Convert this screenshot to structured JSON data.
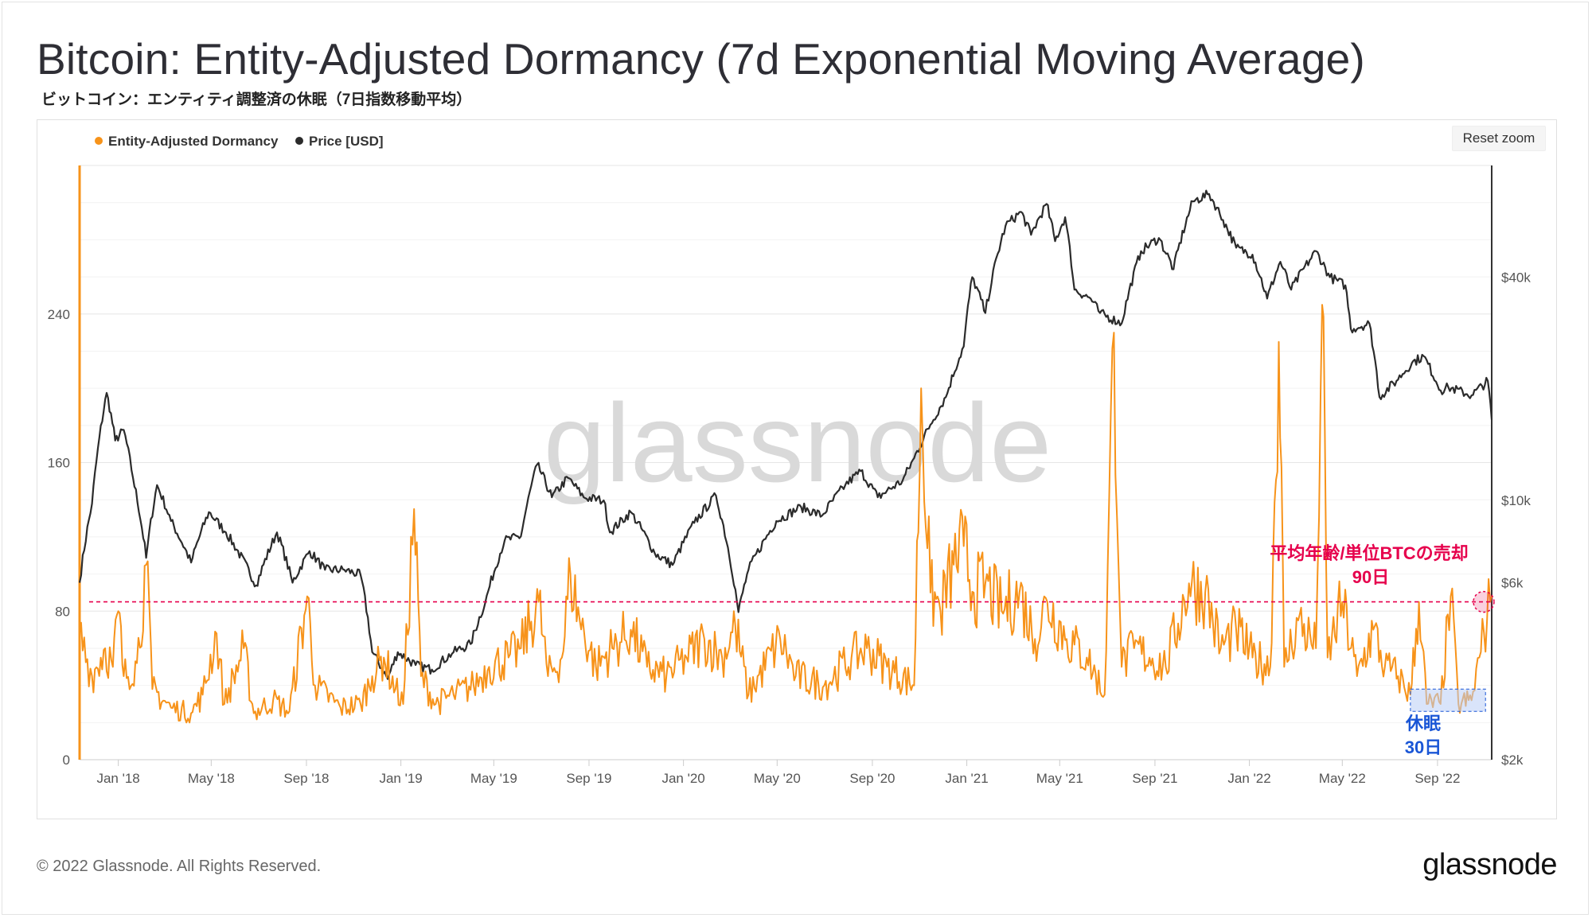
{
  "title": "Bitcoin: Entity-Adjusted Dormancy (7d Exponential Moving Average)",
  "subtitle": "ビットコイン：エンティティ調整済の休眠（7日指数移動平均）",
  "reset_zoom_label": "Reset zoom",
  "watermark": "glassnode",
  "footer": {
    "copyright": "© 2022 Glassnode. All Rights Reserved.",
    "logo": "glassnode"
  },
  "colors": {
    "dormancy": "#f7931a",
    "price": "#2b2b2b",
    "threshold": "#e6004c",
    "dormant_label": "#1a56d6",
    "dormant_box": "#b9cdf5"
  },
  "annotations": {
    "sell_label_line1": "平均年齢/単位BTCの売却",
    "sell_label_line2": "90日",
    "dormant_label_line1": "休眠",
    "dormant_label_line2": "30日"
  },
  "chart_data": {
    "type": "line",
    "title": "Bitcoin: Entity-Adjusted Dormancy (7d Exponential Moving Average)",
    "x_ticks": [
      "Jan '18",
      "May '18",
      "Sep '18",
      "Jan '19",
      "May '19",
      "Sep '19",
      "Jan '20",
      "May '20",
      "Sep '20",
      "Jan '21",
      "May '21",
      "Sep '21",
      "Jan '22",
      "May '22",
      "Sep '22"
    ],
    "x_range": [
      "2017-11-12",
      "2022-11-10"
    ],
    "y_left": {
      "ticks": [
        0,
        80,
        160,
        240
      ],
      "range": [
        0,
        320
      ]
    },
    "y_right": {
      "scale": "log",
      "ticks": [
        "$2k",
        "$6k",
        "$10k",
        "$40k"
      ],
      "tick_values": [
        2000,
        6000,
        10000,
        40000
      ],
      "range": [
        2000,
        80000
      ]
    },
    "legend_position": "top-left",
    "grid": true,
    "threshold_line": {
      "value": 85,
      "style": "dashed"
    },
    "series": [
      {
        "name": "Entity-Adjusted Dormancy",
        "axis": "left",
        "points": [
          [
            "2017-11-12",
            67
          ],
          [
            "2017-11-28",
            45
          ],
          [
            "2017-12-15",
            60
          ],
          [
            "2017-12-25",
            50
          ],
          [
            "2018-01-01",
            80
          ],
          [
            "2018-01-08",
            45
          ],
          [
            "2018-01-25",
            52
          ],
          [
            "2018-02-06",
            105
          ],
          [
            "2018-02-14",
            38
          ],
          [
            "2018-03-10",
            28
          ],
          [
            "2018-04-05",
            25
          ],
          [
            "2018-04-20",
            35
          ],
          [
            "2018-05-08",
            68
          ],
          [
            "2018-05-18",
            30
          ],
          [
            "2018-06-12",
            60
          ],
          [
            "2018-06-25",
            25
          ],
          [
            "2018-07-20",
            32
          ],
          [
            "2018-08-10",
            26
          ],
          [
            "2018-09-02",
            88
          ],
          [
            "2018-09-12",
            40
          ],
          [
            "2018-10-15",
            28
          ],
          [
            "2018-11-10",
            30
          ],
          [
            "2018-11-25",
            45
          ],
          [
            "2018-12-10",
            55
          ],
          [
            "2018-12-25",
            38
          ],
          [
            "2019-01-04",
            30
          ],
          [
            "2019-01-18",
            135
          ],
          [
            "2019-01-27",
            45
          ],
          [
            "2019-02-15",
            30
          ],
          [
            "2019-03-10",
            35
          ],
          [
            "2019-04-05",
            40
          ],
          [
            "2019-04-25",
            50
          ],
          [
            "2019-05-20",
            55
          ],
          [
            "2019-06-05",
            60
          ],
          [
            "2019-06-28",
            85
          ],
          [
            "2019-07-10",
            45
          ],
          [
            "2019-07-28",
            55
          ],
          [
            "2019-08-08",
            100
          ],
          [
            "2019-08-20",
            75
          ],
          [
            "2019-09-10",
            50
          ],
          [
            "2019-10-01",
            60
          ],
          [
            "2019-10-25",
            70
          ],
          [
            "2019-11-15",
            50
          ],
          [
            "2019-12-10",
            45
          ],
          [
            "2020-01-05",
            55
          ],
          [
            "2020-01-28",
            65
          ],
          [
            "2020-02-20",
            55
          ],
          [
            "2020-03-08",
            72
          ],
          [
            "2020-03-25",
            35
          ],
          [
            "2020-05-05",
            65
          ],
          [
            "2020-05-25",
            45
          ],
          [
            "2020-07-01",
            40
          ],
          [
            "2020-08-05",
            55
          ],
          [
            "2020-08-25",
            60
          ],
          [
            "2020-09-20",
            50
          ],
          [
            "2020-10-25",
            40
          ],
          [
            "2020-11-03",
            200
          ],
          [
            "2020-11-15",
            90
          ],
          [
            "2020-11-28",
            80
          ],
          [
            "2020-12-15",
            105
          ],
          [
            "2020-12-28",
            115
          ],
          [
            "2021-01-10",
            90
          ],
          [
            "2021-01-25",
            95
          ],
          [
            "2021-02-15",
            80
          ],
          [
            "2021-03-10",
            90
          ],
          [
            "2021-03-30",
            65
          ],
          [
            "2021-04-15",
            85
          ],
          [
            "2021-05-10",
            65
          ],
          [
            "2021-06-05",
            55
          ],
          [
            "2021-06-28",
            35
          ],
          [
            "2021-07-10",
            230
          ],
          [
            "2021-07-20",
            50
          ],
          [
            "2021-08-05",
            60
          ],
          [
            "2021-08-25",
            55
          ],
          [
            "2021-09-15",
            50
          ],
          [
            "2021-10-15",
            95
          ],
          [
            "2021-11-05",
            90
          ],
          [
            "2021-11-25",
            60
          ],
          [
            "2021-12-15",
            70
          ],
          [
            "2022-01-05",
            55
          ],
          [
            "2022-01-28",
            50
          ],
          [
            "2022-02-08",
            225
          ],
          [
            "2022-02-15",
            50
          ],
          [
            "2022-03-05",
            75
          ],
          [
            "2022-03-28",
            60
          ],
          [
            "2022-04-05",
            245
          ],
          [
            "2022-04-12",
            55
          ],
          [
            "2022-05-01",
            85
          ],
          [
            "2022-05-20",
            45
          ],
          [
            "2022-06-10",
            70
          ],
          [
            "2022-06-25",
            50
          ],
          [
            "2022-07-12",
            45
          ],
          [
            "2022-07-28",
            35
          ],
          [
            "2022-08-08",
            85
          ],
          [
            "2022-08-18",
            30
          ],
          [
            "2022-09-05",
            30
          ],
          [
            "2022-09-18",
            88
          ],
          [
            "2022-09-28",
            30
          ],
          [
            "2022-10-15",
            32
          ],
          [
            "2022-10-25",
            55
          ],
          [
            "2022-11-08",
            85
          ],
          [
            "2022-11-10",
            88
          ]
        ]
      },
      {
        "name": "Price [USD]",
        "axis": "right",
        "points": [
          [
            "2017-11-12",
            6000
          ],
          [
            "2017-11-28",
            9800
          ],
          [
            "2017-12-17",
            19500
          ],
          [
            "2017-12-28",
            14500
          ],
          [
            "2018-01-08",
            15500
          ],
          [
            "2018-01-20",
            11500
          ],
          [
            "2018-02-06",
            7000
          ],
          [
            "2018-02-20",
            11000
          ],
          [
            "2018-03-10",
            8800
          ],
          [
            "2018-04-05",
            6800
          ],
          [
            "2018-04-28",
            9300
          ],
          [
            "2018-05-20",
            8200
          ],
          [
            "2018-06-28",
            5900
          ],
          [
            "2018-07-25",
            8200
          ],
          [
            "2018-08-14",
            6000
          ],
          [
            "2018-09-05",
            7300
          ],
          [
            "2018-09-25",
            6500
          ],
          [
            "2018-10-20",
            6500
          ],
          [
            "2018-11-10",
            6300
          ],
          [
            "2018-11-25",
            3900
          ],
          [
            "2018-12-15",
            3300
          ],
          [
            "2018-12-28",
            3900
          ],
          [
            "2019-01-20",
            3600
          ],
          [
            "2019-02-10",
            3500
          ],
          [
            "2019-03-10",
            3900
          ],
          [
            "2019-04-01",
            4100
          ],
          [
            "2019-04-20",
            5300
          ],
          [
            "2019-05-15",
            7800
          ],
          [
            "2019-06-05",
            8000
          ],
          [
            "2019-06-26",
            12500
          ],
          [
            "2019-07-15",
            10200
          ],
          [
            "2019-08-05",
            11500
          ],
          [
            "2019-08-25",
            10200
          ],
          [
            "2019-09-20",
            10000
          ],
          [
            "2019-09-28",
            8200
          ],
          [
            "2019-10-25",
            9300
          ],
          [
            "2019-11-25",
            7200
          ],
          [
            "2019-12-18",
            6700
          ],
          [
            "2020-01-15",
            8700
          ],
          [
            "2020-02-12",
            10300
          ],
          [
            "2020-03-12",
            5000
          ],
          [
            "2020-03-25",
            6500
          ],
          [
            "2020-04-30",
            8800
          ],
          [
            "2020-06-01",
            9600
          ],
          [
            "2020-06-28",
            9100
          ],
          [
            "2020-07-28",
            11000
          ],
          [
            "2020-08-17",
            12000
          ],
          [
            "2020-09-08",
            10200
          ],
          [
            "2020-10-10",
            11300
          ],
          [
            "2020-10-25",
            13000
          ],
          [
            "2020-11-15",
            16000
          ],
          [
            "2020-12-05",
            19000
          ],
          [
            "2020-12-28",
            26000
          ],
          [
            "2021-01-08",
            40000
          ],
          [
            "2021-01-25",
            32000
          ],
          [
            "2021-02-20",
            55000
          ],
          [
            "2021-03-12",
            60000
          ],
          [
            "2021-03-25",
            52000
          ],
          [
            "2021-04-14",
            63000
          ],
          [
            "2021-04-25",
            50000
          ],
          [
            "2021-05-08",
            58000
          ],
          [
            "2021-05-20",
            37000
          ],
          [
            "2021-06-10",
            35000
          ],
          [
            "2021-06-22",
            32000
          ],
          [
            "2021-07-20",
            30000
          ],
          [
            "2021-08-14",
            47000
          ],
          [
            "2021-09-06",
            51000
          ],
          [
            "2021-09-25",
            42000
          ],
          [
            "2021-10-20",
            64000
          ],
          [
            "2021-11-10",
            67000
          ],
          [
            "2021-11-28",
            57000
          ],
          [
            "2021-12-15",
            48000
          ],
          [
            "2022-01-05",
            46000
          ],
          [
            "2022-01-24",
            35000
          ],
          [
            "2022-02-10",
            44000
          ],
          [
            "2022-02-24",
            37000
          ],
          [
            "2022-03-28",
            47000
          ],
          [
            "2022-04-15",
            40000
          ],
          [
            "2022-05-05",
            38000
          ],
          [
            "2022-05-12",
            29000
          ],
          [
            "2022-06-05",
            30000
          ],
          [
            "2022-06-18",
            19000
          ],
          [
            "2022-07-10",
            21000
          ],
          [
            "2022-07-30",
            23500
          ],
          [
            "2022-08-14",
            24500
          ],
          [
            "2022-09-05",
            19800
          ],
          [
            "2022-09-15",
            20200
          ],
          [
            "2022-10-15",
            19200
          ],
          [
            "2022-11-05",
            21000
          ],
          [
            "2022-11-10",
            16500
          ]
        ]
      }
    ]
  }
}
